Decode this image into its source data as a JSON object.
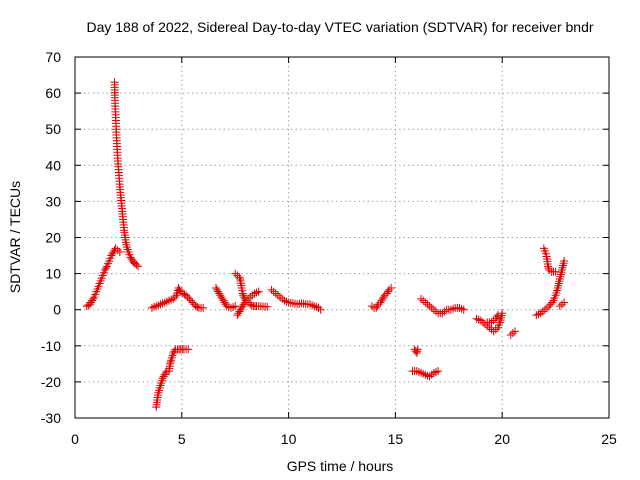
{
  "chart_data": {
    "type": "scatter",
    "title": "Day 188 of 2022, Sidereal Day-to-day VTEC variation (SDTVAR) for receiver bndr",
    "xlabel": "GPS time / hours",
    "ylabel": "SDTVAR / TECUs",
    "xlim": [
      0,
      25
    ],
    "ylim": [
      -30,
      70
    ],
    "xticks": [
      "0",
      "5",
      "10",
      "15",
      "20",
      "25"
    ],
    "yticks": [
      "-30",
      "-20",
      "-10",
      "0",
      "10",
      "20",
      "30",
      "40",
      "50",
      "60",
      "70"
    ],
    "grid": true,
    "marker": "plus",
    "color": "#e00000",
    "segments": [
      [
        [
          0.55,
          1.0
        ],
        [
          0.7,
          1.5
        ],
        [
          0.8,
          2.5
        ],
        [
          0.9,
          3.5
        ],
        [
          1.0,
          5.0
        ],
        [
          1.1,
          6.5
        ],
        [
          1.2,
          8.0
        ],
        [
          1.3,
          9.5
        ],
        [
          1.4,
          11.0
        ],
        [
          1.5,
          12.0
        ],
        [
          1.6,
          13.5
        ],
        [
          1.7,
          15.0
        ],
        [
          1.8,
          16.0
        ],
        [
          1.9,
          17.0
        ],
        [
          2.0,
          16.5
        ],
        [
          2.1,
          16.0
        ]
      ],
      [
        [
          1.85,
          63
        ],
        [
          1.87,
          58
        ],
        [
          1.9,
          54
        ],
        [
          1.93,
          50
        ],
        [
          1.96,
          46
        ],
        [
          2.0,
          42
        ],
        [
          2.05,
          38
        ],
        [
          2.1,
          34
        ],
        [
          2.15,
          31
        ],
        [
          2.2,
          28
        ],
        [
          2.25,
          25
        ],
        [
          2.3,
          22
        ],
        [
          2.35,
          20
        ],
        [
          2.4,
          18
        ],
        [
          2.5,
          16
        ],
        [
          2.6,
          14.5
        ],
        [
          2.7,
          13.5
        ],
        [
          2.8,
          12.8
        ],
        [
          2.95,
          12.0
        ]
      ],
      [
        [
          3.6,
          0.5
        ],
        [
          3.8,
          1.0
        ],
        [
          4.0,
          1.5
        ],
        [
          4.2,
          2.0
        ],
        [
          4.4,
          2.5
        ],
        [
          4.6,
          3.0
        ],
        [
          4.75,
          4.0
        ],
        [
          4.85,
          6.0
        ],
        [
          4.95,
          5.0
        ],
        [
          5.05,
          4.5
        ],
        [
          5.2,
          4.0
        ],
        [
          5.35,
          3.0
        ],
        [
          5.5,
          2.0
        ],
        [
          5.65,
          1.0
        ],
        [
          5.8,
          0.5
        ],
        [
          6.0,
          0.5
        ]
      ],
      [
        [
          3.8,
          -27
        ],
        [
          3.85,
          -25
        ],
        [
          3.9,
          -23
        ],
        [
          4.0,
          -21
        ],
        [
          4.1,
          -19
        ],
        [
          4.2,
          -18
        ],
        [
          4.3,
          -17
        ],
        [
          4.4,
          -17
        ],
        [
          4.45,
          -15
        ],
        [
          4.5,
          -14
        ],
        [
          4.6,
          -12
        ],
        [
          4.7,
          -11
        ],
        [
          4.8,
          -11
        ],
        [
          4.95,
          -11
        ],
        [
          5.1,
          -11
        ],
        [
          5.3,
          -11
        ]
      ],
      [
        [
          6.6,
          6.0
        ],
        [
          6.7,
          5.0
        ],
        [
          6.8,
          4.0
        ],
        [
          6.9,
          3.0
        ],
        [
          7.0,
          2.0
        ],
        [
          7.1,
          1.0
        ],
        [
          7.3,
          0.5
        ],
        [
          7.5,
          1.0
        ]
      ],
      [
        [
          7.5,
          10
        ],
        [
          7.6,
          9.5
        ],
        [
          7.7,
          9.0
        ],
        [
          7.75,
          8.0
        ],
        [
          7.8,
          6.0
        ],
        [
          7.85,
          4.5
        ],
        [
          7.9,
          3.5
        ],
        [
          8.0,
          2.5
        ],
        [
          8.1,
          2.0
        ],
        [
          8.2,
          1.5
        ],
        [
          8.35,
          1.0
        ],
        [
          8.5,
          1.0
        ],
        [
          8.7,
          1.0
        ],
        [
          8.9,
          0.8
        ],
        [
          9.0,
          0.8
        ]
      ],
      [
        [
          7.6,
          -1.5
        ],
        [
          7.7,
          -0.5
        ],
        [
          7.8,
          0.5
        ],
        [
          7.9,
          1.5
        ],
        [
          8.0,
          2.5
        ],
        [
          8.2,
          3.5
        ],
        [
          8.4,
          4.5
        ],
        [
          8.6,
          5.0
        ]
      ],
      [
        [
          9.2,
          5.5
        ],
        [
          9.4,
          4.5
        ],
        [
          9.6,
          3.5
        ],
        [
          9.8,
          2.5
        ],
        [
          10.0,
          2.0
        ],
        [
          10.2,
          1.8
        ],
        [
          10.4,
          1.5
        ],
        [
          10.6,
          1.8
        ],
        [
          10.8,
          1.5
        ],
        [
          11.0,
          1.5
        ],
        [
          11.2,
          1.0
        ],
        [
          11.4,
          0.5
        ],
        [
          11.5,
          0.0
        ]
      ],
      [
        [
          13.9,
          1.0
        ],
        [
          14.0,
          0.5
        ],
        [
          14.1,
          0.5
        ],
        [
          14.2,
          1.5
        ],
        [
          14.3,
          2.0
        ],
        [
          14.4,
          3.0
        ],
        [
          14.5,
          4.0
        ],
        [
          14.6,
          4.5
        ],
        [
          14.7,
          5.5
        ],
        [
          14.8,
          6.0
        ]
      ],
      [
        [
          15.9,
          -11
        ],
        [
          16.0,
          -12
        ],
        [
          16.05,
          -11
        ]
      ],
      [
        [
          15.8,
          -17
        ],
        [
          16.0,
          -17
        ],
        [
          16.2,
          -17.5
        ],
        [
          16.4,
          -18
        ],
        [
          16.6,
          -18.5
        ],
        [
          16.8,
          -17.5
        ],
        [
          17.0,
          -17
        ]
      ],
      [
        [
          16.2,
          3.0
        ],
        [
          16.4,
          2.0
        ],
        [
          16.6,
          1.0
        ],
        [
          16.8,
          0.0
        ],
        [
          17.0,
          -1.0
        ],
        [
          17.2,
          -1.0
        ],
        [
          17.4,
          0.0
        ],
        [
          17.6,
          0.0
        ],
        [
          17.8,
          0.5
        ],
        [
          18.0,
          0.5
        ],
        [
          18.2,
          0.0
        ]
      ],
      [
        [
          18.8,
          -2.5
        ],
        [
          19.0,
          -3.0
        ],
        [
          19.2,
          -4.0
        ],
        [
          19.4,
          -5.0
        ],
        [
          19.6,
          -6.0
        ],
        [
          19.8,
          -5.0
        ],
        [
          19.9,
          -3.5
        ],
        [
          20.0,
          -1.0
        ]
      ],
      [
        [
          19.3,
          -3.5
        ],
        [
          19.5,
          -3.5
        ],
        [
          19.7,
          -2.5
        ],
        [
          19.8,
          -1.5
        ]
      ],
      [
        [
          20.4,
          -7.0
        ],
        [
          20.5,
          -6.5
        ],
        [
          20.6,
          -6.0
        ]
      ],
      [
        [
          21.6,
          -1.5
        ],
        [
          21.8,
          -1.0
        ],
        [
          22.0,
          0.0
        ],
        [
          22.2,
          1.0
        ],
        [
          22.4,
          2.5
        ],
        [
          22.5,
          4.0
        ],
        [
          22.6,
          6.0
        ],
        [
          22.7,
          8.5
        ],
        [
          22.8,
          11.0
        ],
        [
          22.9,
          13.5
        ]
      ],
      [
        [
          21.95,
          17.0
        ],
        [
          22.05,
          15.5
        ],
        [
          22.1,
          14.0
        ],
        [
          22.15,
          12.0
        ],
        [
          22.2,
          11.0
        ],
        [
          22.3,
          10.5
        ],
        [
          22.5,
          10.5
        ]
      ],
      [
        [
          22.7,
          1.0
        ],
        [
          22.8,
          1.5
        ],
        [
          22.9,
          2.0
        ]
      ]
    ]
  }
}
